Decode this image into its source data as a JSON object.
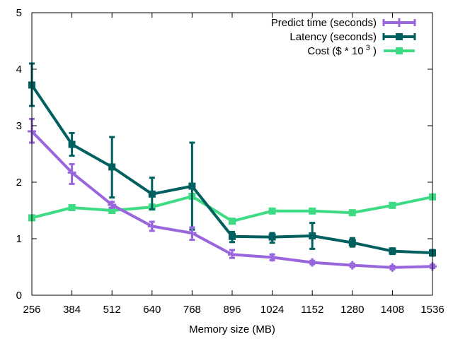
{
  "chart_data": {
    "type": "line",
    "title": "",
    "xlabel": "Memory size (MB)",
    "ylabel": "",
    "x": [
      256,
      384,
      512,
      640,
      768,
      896,
      1024,
      1152,
      1280,
      1408,
      1536
    ],
    "x_tick_labels": [
      "256",
      "384",
      "512",
      "640",
      "768",
      "896",
      "1024",
      "1152",
      "1280",
      "1408",
      "1536"
    ],
    "y_tick_labels": [
      "0",
      "1",
      "2",
      "3",
      "4",
      "5"
    ],
    "y_ticks": [
      0,
      1,
      2,
      3,
      4,
      5
    ],
    "xlim": [
      256,
      1536
    ],
    "ylim": [
      0,
      5
    ],
    "grid": false,
    "legend_position": "top-right",
    "series": [
      {
        "name": "Predict time (seconds)",
        "legend_prefix": "Predict time (seconds)",
        "legend_sup": "",
        "legend_suffix": "",
        "color": "#9966dd",
        "marker": "plus",
        "values": [
          2.9,
          2.17,
          1.6,
          1.22,
          1.1,
          0.72,
          0.67,
          0.58,
          0.53,
          0.49,
          0.51
        ],
        "err_low": [
          2.7,
          1.97,
          1.55,
          1.14,
          0.98,
          0.66,
          0.62,
          0.55,
          0.5,
          0.46,
          0.48
        ],
        "err_high": [
          3.12,
          2.32,
          1.65,
          1.3,
          1.2,
          0.8,
          0.72,
          0.61,
          0.56,
          0.52,
          0.54
        ]
      },
      {
        "name": "Latency (seconds)",
        "legend_prefix": "Latency (seconds)",
        "legend_sup": "",
        "legend_suffix": "",
        "color": "#006060",
        "marker": "square",
        "values": [
          3.72,
          2.67,
          2.27,
          1.79,
          1.93,
          1.04,
          1.03,
          1.05,
          0.93,
          0.78,
          0.75
        ],
        "err_low": [
          3.35,
          2.47,
          1.73,
          1.52,
          1.16,
          0.94,
          0.93,
          0.82,
          0.86,
          0.73,
          0.7
        ],
        "err_high": [
          4.1,
          2.87,
          2.8,
          2.08,
          2.7,
          1.12,
          1.1,
          1.28,
          1.01,
          0.83,
          0.8
        ]
      },
      {
        "name": "Cost ($ * 10^3)",
        "legend_prefix": "Cost ($ * 10",
        "legend_sup": "3",
        "legend_suffix": ")",
        "color": "#3ddc84",
        "marker": "square",
        "values": [
          1.37,
          1.55,
          1.5,
          1.56,
          1.75,
          1.31,
          1.49,
          1.49,
          1.46,
          1.59,
          1.74
        ],
        "err_low": null,
        "err_high": null
      }
    ]
  }
}
